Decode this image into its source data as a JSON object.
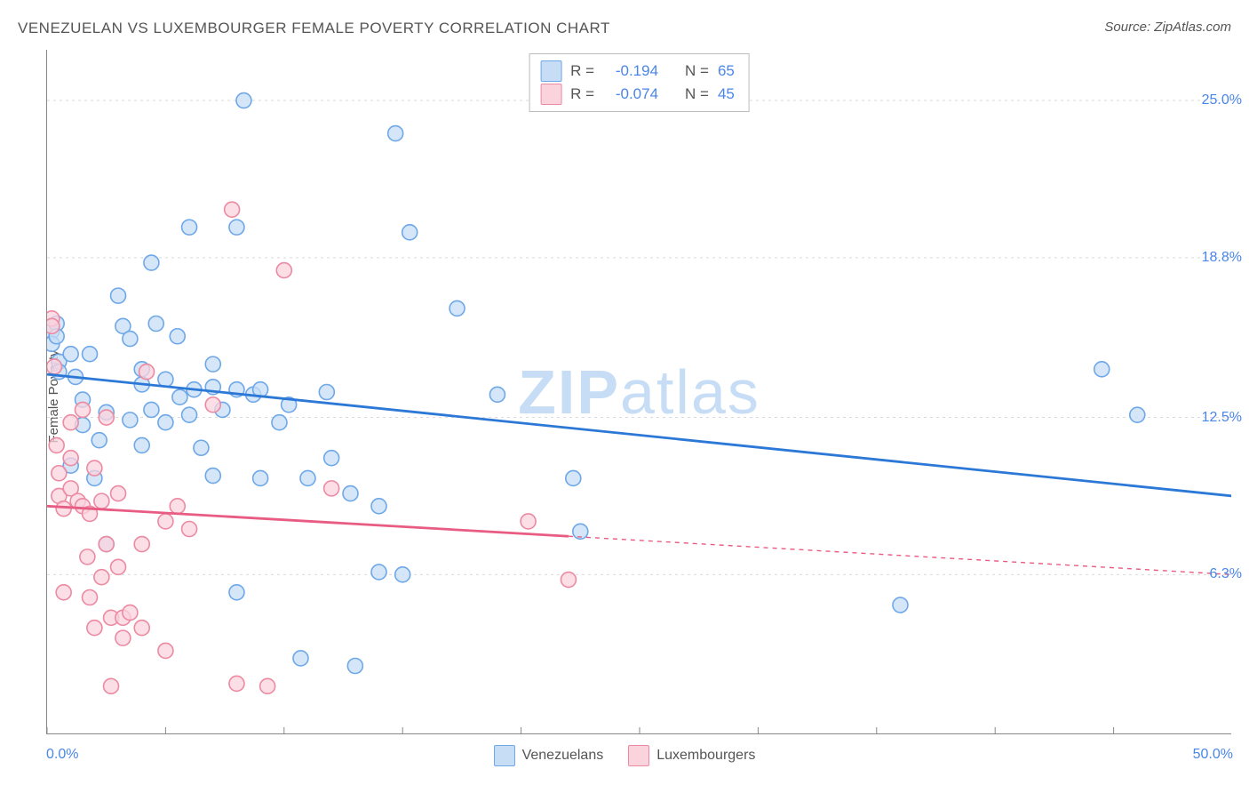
{
  "title": "VENEZUELAN VS LUXEMBOURGER FEMALE POVERTY CORRELATION CHART",
  "source_prefix": "Source: ",
  "source_name": "ZipAtlas.com",
  "ylabel": "Female Poverty",
  "watermark_bold": "ZIP",
  "watermark_rest": "atlas",
  "chart": {
    "type": "scatter",
    "xlim": [
      0,
      50
    ],
    "ylim": [
      0,
      27
    ],
    "x_ticks_minor": [
      0,
      5,
      10,
      15,
      20,
      25,
      30,
      35,
      40,
      45
    ],
    "y_gridlines": [
      6.3,
      12.5,
      18.8,
      25.0
    ],
    "y_tick_labels": [
      "6.3%",
      "12.5%",
      "18.8%",
      "25.0%"
    ],
    "x_min_label": "0.0%",
    "x_max_label": "50.0%",
    "grid_color": "#dadada",
    "axis_color": "#888888",
    "background_color": "#ffffff",
    "marker_radius": 8.5,
    "marker_stroke_width": 1.6,
    "line_width": 2.8,
    "series": [
      {
        "name": "Venezuelans",
        "fill": "#c6ddf5",
        "stroke": "#6fa8e8",
        "line_color": "#2b78d6",
        "R": "-0.194",
        "N": "65",
        "regression": {
          "x1": 0,
          "y1": 14.2,
          "x2": 50,
          "y2": 9.4,
          "dashed_from": 50
        },
        "points": [
          [
            0.2,
            15.9
          ],
          [
            0.5,
            14.7
          ],
          [
            0.4,
            16.2
          ],
          [
            0.2,
            15.4
          ],
          [
            0.5,
            14.3
          ],
          [
            0.4,
            15.7
          ],
          [
            1.0,
            10.6
          ],
          [
            1.0,
            15.0
          ],
          [
            1.2,
            14.1
          ],
          [
            1.5,
            12.2
          ],
          [
            1.8,
            15.0
          ],
          [
            1.5,
            13.2
          ],
          [
            2.0,
            10.1
          ],
          [
            2.2,
            11.6
          ],
          [
            2.5,
            12.7
          ],
          [
            2.5,
            7.5
          ],
          [
            3.0,
            17.3
          ],
          [
            3.2,
            16.1
          ],
          [
            3.5,
            12.4
          ],
          [
            3.5,
            15.6
          ],
          [
            4.0,
            13.8
          ],
          [
            4.0,
            14.4
          ],
          [
            4.0,
            11.4
          ],
          [
            4.4,
            18.6
          ],
          [
            4.4,
            12.8
          ],
          [
            4.6,
            16.2
          ],
          [
            5.0,
            14.0
          ],
          [
            5.0,
            12.3
          ],
          [
            5.5,
            15.7
          ],
          [
            5.6,
            13.3
          ],
          [
            6.0,
            12.6
          ],
          [
            6.0,
            20.0
          ],
          [
            6.2,
            13.6
          ],
          [
            6.5,
            11.3
          ],
          [
            7.0,
            14.6
          ],
          [
            7.0,
            13.7
          ],
          [
            7.0,
            10.2
          ],
          [
            7.4,
            12.8
          ],
          [
            8.0,
            13.6
          ],
          [
            8.0,
            20.0
          ],
          [
            8.0,
            5.6
          ],
          [
            8.3,
            25.0
          ],
          [
            8.7,
            13.4
          ],
          [
            9.0,
            13.6
          ],
          [
            9.0,
            10.1
          ],
          [
            9.8,
            12.3
          ],
          [
            10.2,
            13.0
          ],
          [
            10.7,
            3.0
          ],
          [
            11.0,
            10.1
          ],
          [
            11.8,
            13.5
          ],
          [
            12.0,
            10.9
          ],
          [
            12.8,
            9.5
          ],
          [
            13.0,
            2.7
          ],
          [
            14.0,
            6.4
          ],
          [
            14.0,
            9.0
          ],
          [
            14.7,
            23.7
          ],
          [
            15.0,
            6.3
          ],
          [
            15.3,
            19.8
          ],
          [
            17.3,
            16.8
          ],
          [
            19.0,
            13.4
          ],
          [
            22.2,
            10.1
          ],
          [
            22.5,
            8.0
          ],
          [
            36.0,
            5.1
          ],
          [
            44.5,
            14.4
          ],
          [
            46.0,
            12.6
          ]
        ]
      },
      {
        "name": "Luxembourgers",
        "fill": "#fbd3dd",
        "stroke": "#ec8aa2",
        "line_color": "#e85b82",
        "R": "-0.074",
        "N": "45",
        "regression": {
          "x1": 0,
          "y1": 9.0,
          "x2": 50,
          "y2": 6.3,
          "dashed_from": 22
        },
        "points": [
          [
            0.2,
            16.4
          ],
          [
            0.2,
            16.1
          ],
          [
            0.3,
            14.5
          ],
          [
            0.4,
            11.4
          ],
          [
            0.5,
            10.3
          ],
          [
            0.5,
            9.4
          ],
          [
            0.7,
            8.9
          ],
          [
            0.7,
            5.6
          ],
          [
            1.0,
            12.3
          ],
          [
            1.0,
            9.7
          ],
          [
            1.0,
            10.9
          ],
          [
            1.3,
            9.2
          ],
          [
            1.5,
            12.8
          ],
          [
            1.5,
            9.0
          ],
          [
            1.7,
            7.0
          ],
          [
            1.8,
            5.4
          ],
          [
            1.8,
            8.7
          ],
          [
            2.0,
            10.5
          ],
          [
            2.0,
            4.2
          ],
          [
            2.3,
            9.2
          ],
          [
            2.3,
            6.2
          ],
          [
            2.5,
            7.5
          ],
          [
            2.5,
            12.5
          ],
          [
            2.7,
            4.6
          ],
          [
            2.7,
            1.9
          ],
          [
            3.0,
            9.5
          ],
          [
            3.0,
            6.6
          ],
          [
            3.2,
            3.8
          ],
          [
            3.2,
            4.6
          ],
          [
            3.5,
            4.8
          ],
          [
            4.0,
            7.5
          ],
          [
            4.0,
            4.2
          ],
          [
            4.2,
            14.3
          ],
          [
            5.0,
            8.4
          ],
          [
            5.0,
            3.3
          ],
          [
            5.5,
            9.0
          ],
          [
            6.0,
            8.1
          ],
          [
            7.0,
            13.0
          ],
          [
            7.8,
            20.7
          ],
          [
            8.0,
            2.0
          ],
          [
            9.3,
            1.9
          ],
          [
            10.0,
            18.3
          ],
          [
            12.0,
            9.7
          ],
          [
            20.3,
            8.4
          ],
          [
            22.0,
            6.1
          ]
        ]
      }
    ]
  },
  "stats_box": {
    "R_label": "R =",
    "N_label": "N ="
  }
}
